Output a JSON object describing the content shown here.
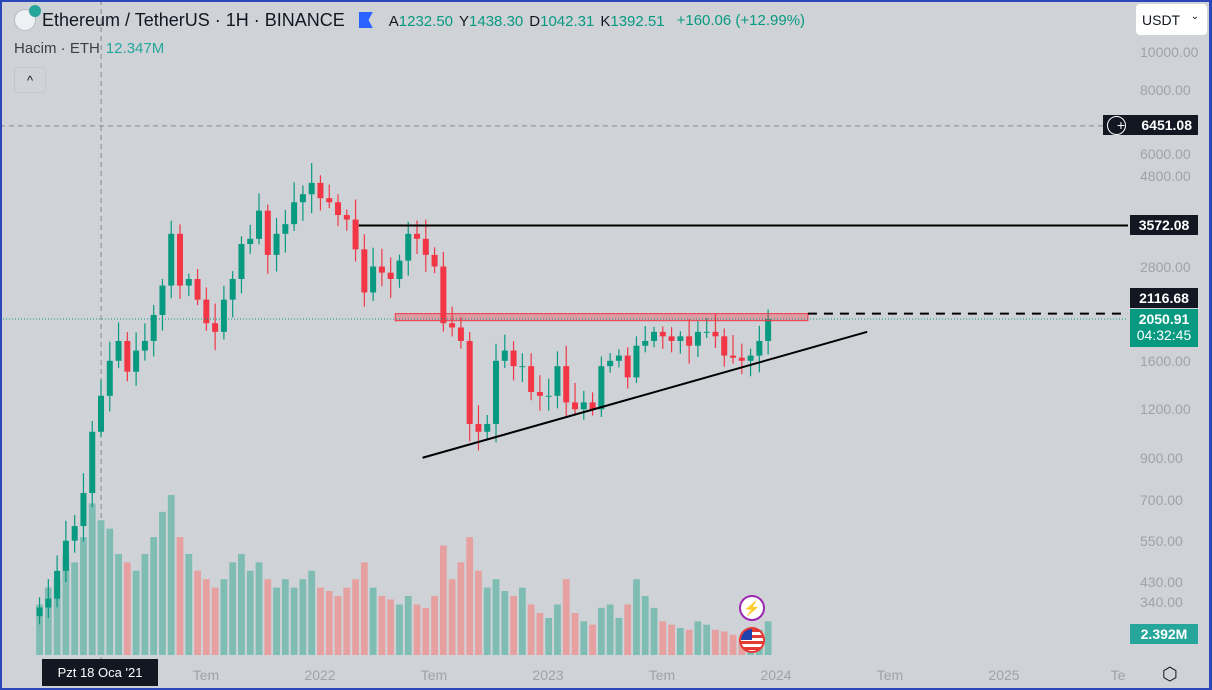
{
  "header": {
    "symbol": "Ethereum / TetherUS · 1H · BINANCE",
    "ohlc": [
      {
        "k": "A",
        "v": "1232.50"
      },
      {
        "k": "Y",
        "v": "1438.30"
      },
      {
        "k": "D",
        "v": "1042.31"
      },
      {
        "k": "K",
        "v": "1392.51"
      }
    ],
    "change": "+160.06 (+12.99%)"
  },
  "volume_legend": {
    "label": "Hacim · ETH",
    "value": "12.347M"
  },
  "collapse": "^",
  "currency": {
    "selected": "USDT",
    "chevron": "⌄"
  },
  "price_tags": {
    "crosshair": "6451.08",
    "resistance": "3572.08",
    "box_top": "2116.68",
    "last": "2050.91",
    "countdown": "04:32:45",
    "volume": "2.392M"
  },
  "crosshair_date": "Pzt 18 Oca '21",
  "colors": {
    "up": "#089981",
    "down": "#f23645",
    "vol_up": "#7fbcb3",
    "vol_down": "#e6a0a0",
    "accent": "#2962ff"
  },
  "chart_data": {
    "type": "candlestick",
    "scale": "log",
    "ylim": [
      300,
      10000
    ],
    "y_ticks": [
      "10000.00",
      "8000.00",
      "6000.00",
      "4800.00",
      "2800.00",
      "1600.00",
      "1200.00",
      "900.00",
      "700.00",
      "550.00",
      "430.00",
      "340.00"
    ],
    "y_tick_values": [
      10000,
      8000,
      6000,
      4800,
      2800,
      1600,
      1200,
      900,
      700,
      550,
      430,
      340
    ],
    "x_ticks": [
      {
        "label": "Tem",
        "t": 2021.5
      },
      {
        "label": "2022",
        "t": 2022
      },
      {
        "label": "Tem",
        "t": 2022.5
      },
      {
        "label": "2023",
        "t": 2023
      },
      {
        "label": "Tem",
        "t": 2023.5
      },
      {
        "label": "2024",
        "t": 2024
      },
      {
        "label": "Tem",
        "t": 2024.5
      },
      {
        "label": "2025",
        "t": 2025
      },
      {
        "label": "Te",
        "t": 2025.5
      }
    ],
    "start": 2020.77,
    "step_years": 0.0385,
    "closes": [
      370,
      390,
      460,
      550,
      600,
      730,
      1050,
      1300,
      1600,
      1800,
      1500,
      1700,
      1800,
      2100,
      2500,
      3400,
      2500,
      2600,
      2300,
      2000,
      1900,
      2300,
      2600,
      3200,
      3300,
      3900,
      3000,
      3400,
      3600,
      4100,
      4300,
      4600,
      4200,
      4100,
      3800,
      3700,
      3100,
      2400,
      2800,
      2700,
      2600,
      2900,
      3400,
      3300,
      3000,
      2800,
      2000,
      1950,
      1800,
      1100,
      1050,
      1100,
      1600,
      1700,
      1550,
      1550,
      1330,
      1300,
      1300,
      1550,
      1250,
      1200,
      1250,
      1200,
      1550,
      1600,
      1650,
      1450,
      1750,
      1800,
      1900,
      1850,
      1800,
      1850,
      1750,
      1900,
      1900,
      1850,
      1650,
      1630,
      1600,
      1650,
      1800,
      2050
    ],
    "volumes": [
      30,
      40,
      45,
      60,
      55,
      70,
      90,
      80,
      75,
      60,
      55,
      50,
      60,
      70,
      85,
      95,
      70,
      60,
      50,
      45,
      40,
      45,
      55,
      60,
      50,
      55,
      45,
      40,
      45,
      40,
      45,
      50,
      40,
      38,
      35,
      40,
      45,
      55,
      40,
      35,
      33,
      30,
      35,
      30,
      28,
      35,
      65,
      45,
      55,
      70,
      50,
      40,
      45,
      38,
      35,
      40,
      30,
      25,
      22,
      30,
      45,
      25,
      20,
      18,
      28,
      30,
      22,
      30,
      45,
      35,
      28,
      20,
      18,
      16,
      15,
      20,
      18,
      15,
      14,
      12,
      10,
      12,
      15,
      20
    ],
    "drawings": [
      {
        "type": "hline",
        "price": 3572.08,
        "from": 2022.17
      },
      {
        "type": "box",
        "top": 2116.68,
        "bottom": 2030,
        "from": 2022.33,
        "to": 2024.14
      },
      {
        "type": "dashed",
        "price": 2116.68,
        "from": 2024.14
      },
      {
        "type": "trendline",
        "p1": {
          "t": 2022.45,
          "price": 900
        },
        "p2": {
          "t": 2024.4,
          "price": 1900
        }
      }
    ],
    "crosshair": {
      "t": 2021.04,
      "price": 6451.08
    },
    "last_price": 2050.91
  }
}
